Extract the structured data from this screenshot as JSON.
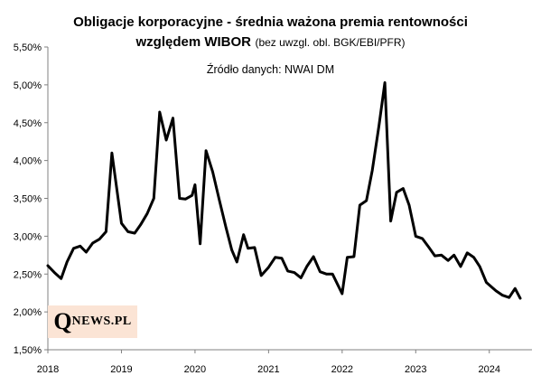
{
  "chart_data": {
    "type": "line",
    "title_line1": "Obligacje korporacyjne  - średnia ważona premia rentowności",
    "title_line2_bold": "względem WIBOR",
    "title_line2_paren": "(bez uwzgl. obl. BGK/EBI/PFR)",
    "subtitle": "Źródło danych: NWAI DM",
    "ylim": [
      1.5,
      5.5
    ],
    "xlim": [
      2018,
      2024.58
    ],
    "y_ticks": [
      {
        "value": 1.5,
        "label": "1,50%"
      },
      {
        "value": 2.0,
        "label": "2,00%"
      },
      {
        "value": 2.5,
        "label": "2,50%"
      },
      {
        "value": 3.0,
        "label": "3,00%"
      },
      {
        "value": 3.5,
        "label": "3,50%"
      },
      {
        "value": 4.0,
        "label": "4,00%"
      },
      {
        "value": 4.5,
        "label": "4,50%"
      },
      {
        "value": 5.0,
        "label": "5,00%"
      },
      {
        "value": 5.5,
        "label": "5,50%"
      }
    ],
    "x_ticks": [
      {
        "value": 2018,
        "label": "2018"
      },
      {
        "value": 2019,
        "label": "2019"
      },
      {
        "value": 2020,
        "label": "2020"
      },
      {
        "value": 2021,
        "label": "2021"
      },
      {
        "value": 2022,
        "label": "2022"
      },
      {
        "value": 2023,
        "label": "2023"
      },
      {
        "value": 2024,
        "label": "2024"
      }
    ],
    "grid": false,
    "legend": "none",
    "line_color": "#000000",
    "series": [
      {
        "x": [
          2018.0,
          2018.09,
          2018.18,
          2018.26,
          2018.35,
          2018.44,
          2018.52,
          2018.61,
          2018.7,
          2018.79,
          2018.87,
          2019.0,
          2019.09,
          2019.18,
          2019.26,
          2019.35,
          2019.44,
          2019.52,
          2019.61,
          2019.7,
          2019.79,
          2019.87,
          2019.96,
          2020.0,
          2020.07,
          2020.15,
          2020.24,
          2020.33,
          2020.42,
          2020.5,
          2020.57,
          2020.66,
          2020.72,
          2020.81,
          2020.9,
          2021.0,
          2021.09,
          2021.18,
          2021.26,
          2021.35,
          2021.44,
          2021.52,
          2021.61,
          2021.7,
          2021.79,
          2021.87,
          2022.0,
          2022.07,
          2022.16,
          2022.24,
          2022.33,
          2022.41,
          2022.5,
          2022.58,
          2022.66,
          2022.74,
          2022.83,
          2022.91,
          2023.0,
          2023.09,
          2023.18,
          2023.26,
          2023.35,
          2023.44,
          2023.52,
          2023.61,
          2023.7,
          2023.79,
          2023.87,
          2023.96,
          2024.09,
          2024.18,
          2024.27,
          2024.35,
          2024.42
        ],
        "y": [
          2.61,
          2.52,
          2.44,
          2.66,
          2.84,
          2.87,
          2.79,
          2.91,
          2.96,
          3.06,
          4.1,
          3.17,
          3.06,
          3.04,
          3.15,
          3.3,
          3.5,
          4.64,
          4.27,
          4.56,
          3.5,
          3.49,
          3.54,
          3.68,
          2.9,
          4.13,
          3.85,
          3.48,
          3.12,
          2.82,
          2.66,
          3.02,
          2.84,
          2.85,
          2.48,
          2.59,
          2.72,
          2.71,
          2.54,
          2.52,
          2.45,
          2.6,
          2.73,
          2.53,
          2.5,
          2.5,
          2.24,
          2.72,
          2.73,
          3.41,
          3.47,
          3.87,
          4.46,
          5.03,
          3.2,
          3.58,
          3.63,
          3.41,
          3.0,
          2.97,
          2.85,
          2.74,
          2.75,
          2.68,
          2.75,
          2.6,
          2.78,
          2.72,
          2.6,
          2.39,
          2.28,
          2.22,
          2.19,
          2.31,
          2.18
        ]
      }
    ]
  },
  "logo_text_q": "Q",
  "logo_text_rest": "NEWS.PL"
}
